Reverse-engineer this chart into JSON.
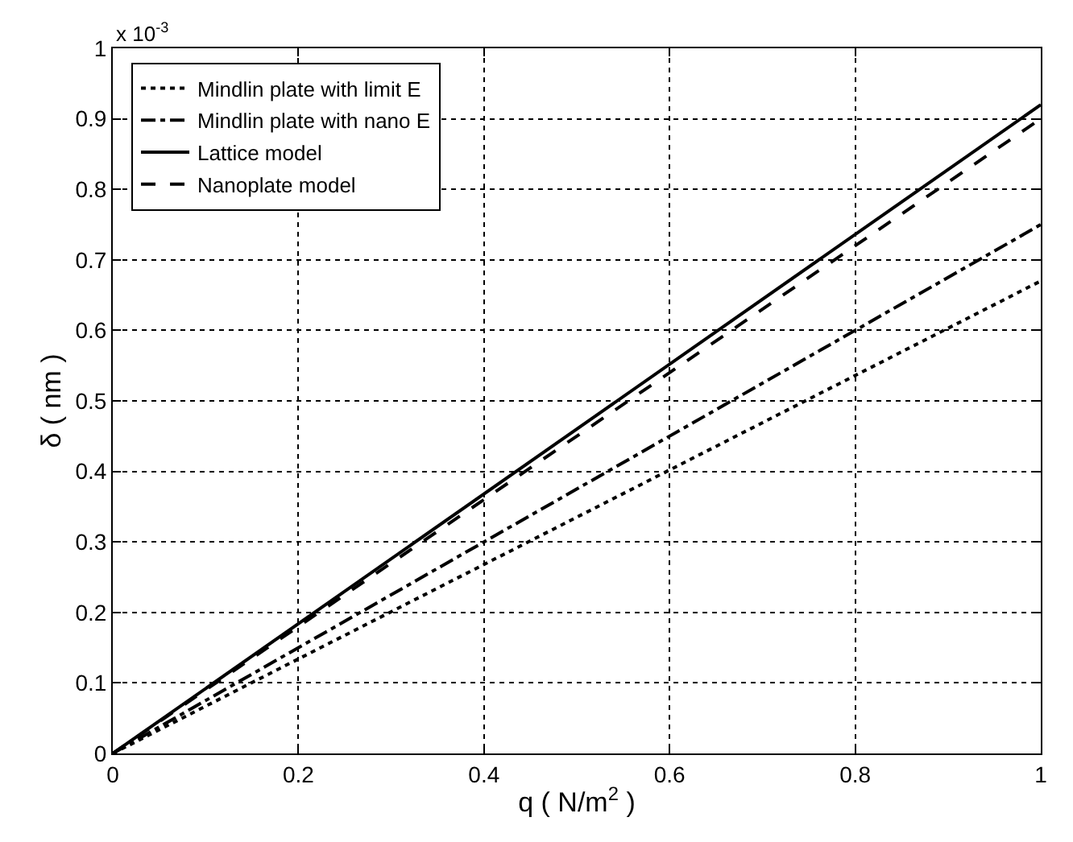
{
  "chart_data": {
    "type": "line",
    "xlabel": "q ( N/m$^{2}$ )",
    "ylabel": "δ ( nm )",
    "annotations": [
      "x 10$^{-3}$"
    ],
    "x": [
      0,
      1
    ],
    "series": [
      {
        "name": "Mindlin plate with limit E",
        "color": "#000000",
        "line_style": "dotted",
        "values": [
          0,
          0.67
        ]
      },
      {
        "name": "Mindlin plate with nano E",
        "color": "#000000",
        "line_style": "dashdot",
        "values": [
          0,
          0.75
        ]
      },
      {
        "name": "Lattice model",
        "color": "#000000",
        "line_style": "solid",
        "values": [
          0,
          0.92
        ]
      },
      {
        "name": "Nanoplate model",
        "color": "#000000",
        "line_style": "dashed",
        "values": [
          0,
          0.9
        ]
      }
    ],
    "xlim": [
      0,
      1
    ],
    "xticks": [
      0,
      0.2,
      0.4,
      0.6,
      0.8,
      1
    ],
    "ylim": [
      0,
      1
    ],
    "yticks": [
      0,
      0.1,
      0.2,
      0.3,
      0.4,
      0.5,
      0.6,
      0.7,
      0.8,
      0.9,
      1
    ],
    "grid": true,
    "legend": "top left",
    "marker": "none"
  }
}
